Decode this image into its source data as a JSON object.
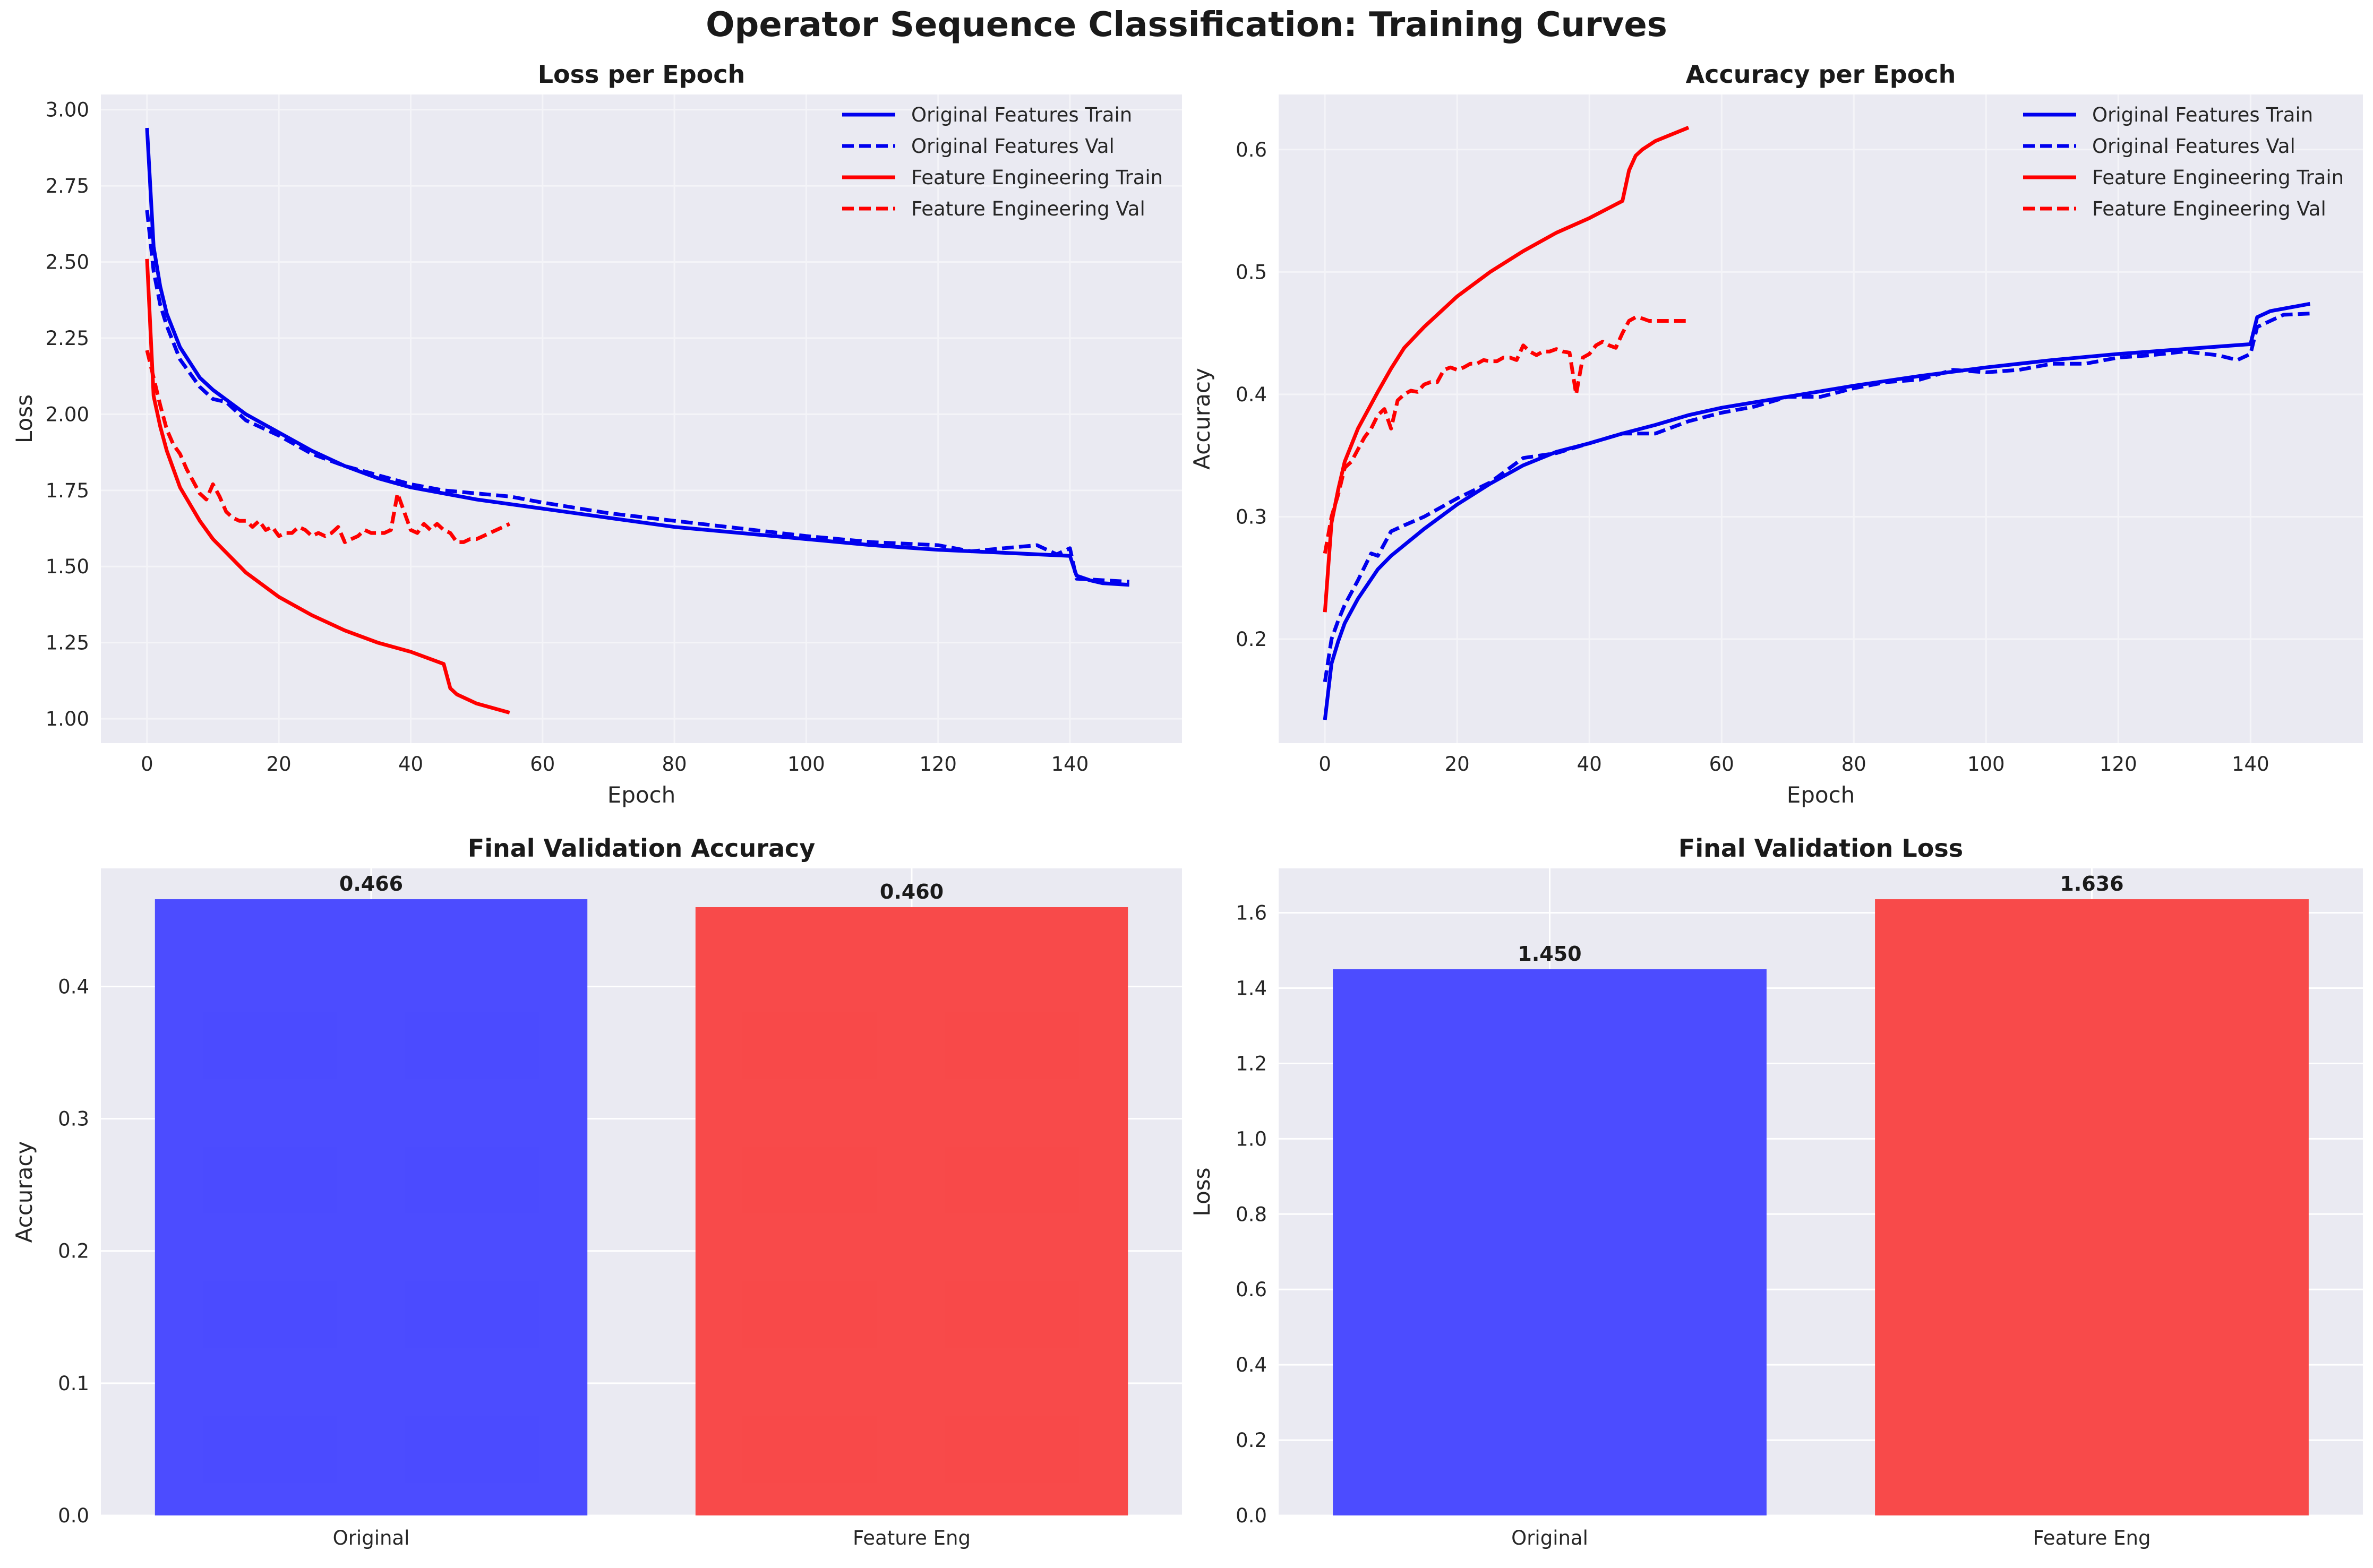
{
  "suptitle": "Operator Sequence Classification: Training Curves",
  "colors": {
    "blue": "#0000ee",
    "red": "#ff0000",
    "bar_blue": "#4646ff",
    "bar_red": "#f84444",
    "panel_bg": "#eaeaf2",
    "grid": "#ffffff"
  },
  "chart_data": [
    {
      "type": "line",
      "title": "Loss per Epoch",
      "xlabel": "Epoch",
      "ylabel": "Loss",
      "xlim": [
        -7,
        157
      ],
      "ylim": [
        0.92,
        3.05
      ],
      "xticks": [
        0,
        20,
        40,
        60,
        80,
        100,
        120,
        140
      ],
      "yticks": [
        1.0,
        1.25,
        1.5,
        1.75,
        2.0,
        2.25,
        2.5,
        2.75,
        3.0
      ],
      "ytick_labels": [
        "1.00",
        "1.25",
        "1.50",
        "1.75",
        "2.00",
        "2.25",
        "2.50",
        "2.75",
        "3.00"
      ],
      "grid": true,
      "legend_position": "upper right",
      "series": [
        {
          "name": "Original Features Train",
          "color": "#0000ee",
          "style": "solid",
          "x": [
            0,
            1,
            2,
            3,
            5,
            8,
            10,
            15,
            20,
            25,
            30,
            35,
            40,
            45,
            50,
            60,
            70,
            80,
            90,
            100,
            110,
            120,
            130,
            140,
            141,
            143,
            145,
            149
          ],
          "y": [
            2.94,
            2.55,
            2.42,
            2.33,
            2.22,
            2.12,
            2.08,
            2.0,
            1.94,
            1.88,
            1.83,
            1.79,
            1.76,
            1.74,
            1.72,
            1.69,
            1.66,
            1.63,
            1.61,
            1.59,
            1.57,
            1.555,
            1.545,
            1.535,
            1.47,
            1.455,
            1.445,
            1.44
          ]
        },
        {
          "name": "Original Features Val",
          "color": "#0000ee",
          "style": "dashed",
          "x": [
            0,
            1,
            2,
            3,
            5,
            8,
            10,
            12,
            15,
            20,
            25,
            30,
            35,
            40,
            45,
            50,
            55,
            60,
            70,
            80,
            90,
            100,
            105,
            110,
            115,
            120,
            125,
            130,
            135,
            138,
            140,
            141,
            145,
            149
          ],
          "y": [
            2.67,
            2.47,
            2.36,
            2.29,
            2.18,
            2.09,
            2.05,
            2.04,
            1.98,
            1.93,
            1.87,
            1.83,
            1.8,
            1.77,
            1.75,
            1.74,
            1.73,
            1.71,
            1.675,
            1.65,
            1.625,
            1.6,
            1.59,
            1.58,
            1.575,
            1.57,
            1.55,
            1.56,
            1.57,
            1.54,
            1.56,
            1.46,
            1.455,
            1.45
          ]
        },
        {
          "name": "Feature Engineering Train",
          "color": "#ff0000",
          "style": "solid",
          "x": [
            0,
            1,
            2,
            3,
            5,
            8,
            10,
            15,
            20,
            25,
            30,
            35,
            40,
            45,
            46,
            47,
            50,
            55
          ],
          "y": [
            2.51,
            2.06,
            1.96,
            1.88,
            1.76,
            1.65,
            1.59,
            1.48,
            1.4,
            1.34,
            1.29,
            1.25,
            1.22,
            1.18,
            1.1,
            1.08,
            1.05,
            1.02
          ]
        },
        {
          "name": "Feature Engineering Val",
          "color": "#ff0000",
          "style": "dashed",
          "x": [
            0,
            1,
            2,
            3,
            4,
            5,
            6,
            7,
            8,
            9,
            10,
            11,
            12,
            13,
            14,
            15,
            16,
            17,
            18,
            19,
            20,
            21,
            22,
            23,
            24,
            25,
            26,
            27,
            28,
            29,
            30,
            31,
            32,
            33,
            34,
            35,
            36,
            37,
            38,
            39,
            40,
            41,
            42,
            43,
            44,
            45,
            46,
            47,
            48,
            49,
            50,
            51,
            52,
            53,
            54,
            55
          ],
          "y": [
            2.21,
            2.12,
            2.03,
            1.95,
            1.9,
            1.87,
            1.82,
            1.78,
            1.74,
            1.72,
            1.77,
            1.73,
            1.68,
            1.66,
            1.65,
            1.65,
            1.63,
            1.65,
            1.62,
            1.63,
            1.6,
            1.61,
            1.61,
            1.63,
            1.62,
            1.6,
            1.61,
            1.6,
            1.61,
            1.63,
            1.58,
            1.59,
            1.6,
            1.62,
            1.61,
            1.61,
            1.61,
            1.62,
            1.74,
            1.68,
            1.62,
            1.61,
            1.64,
            1.62,
            1.64,
            1.62,
            1.61,
            1.58,
            1.58,
            1.59,
            1.59,
            1.6,
            1.61,
            1.62,
            1.63,
            1.64
          ]
        }
      ]
    },
    {
      "type": "line",
      "title": "Accuracy per Epoch",
      "xlabel": "Epoch",
      "ylabel": "Accuracy",
      "xlim": [
        -7,
        157
      ],
      "ylim": [
        0.115,
        0.645
      ],
      "xticks": [
        0,
        20,
        40,
        60,
        80,
        100,
        120,
        140
      ],
      "yticks": [
        0.2,
        0.3,
        0.4,
        0.5,
        0.6
      ],
      "ytick_labels": [
        "0.2",
        "0.3",
        "0.4",
        "0.5",
        "0.6"
      ],
      "grid": true,
      "legend_position": "upper right",
      "series": [
        {
          "name": "Original Features Train",
          "color": "#0000ee",
          "style": "solid",
          "x": [
            0,
            1,
            2,
            3,
            5,
            8,
            10,
            15,
            20,
            25,
            30,
            35,
            40,
            45,
            50,
            55,
            60,
            70,
            80,
            90,
            100,
            110,
            120,
            130,
            140,
            141,
            143,
            145,
            149
          ],
          "y": [
            0.134,
            0.18,
            0.198,
            0.213,
            0.233,
            0.257,
            0.268,
            0.29,
            0.31,
            0.327,
            0.342,
            0.353,
            0.36,
            0.368,
            0.375,
            0.383,
            0.389,
            0.398,
            0.407,
            0.415,
            0.422,
            0.428,
            0.433,
            0.437,
            0.441,
            0.463,
            0.468,
            0.47,
            0.474
          ]
        },
        {
          "name": "Original Features Val",
          "color": "#0000ee",
          "style": "dashed",
          "x": [
            0,
            1,
            2,
            3,
            5,
            7,
            8,
            10,
            12,
            15,
            20,
            25,
            30,
            35,
            40,
            45,
            50,
            55,
            60,
            65,
            70,
            75,
            80,
            85,
            90,
            95,
            100,
            105,
            110,
            115,
            120,
            125,
            130,
            135,
            138,
            140,
            141,
            143,
            145,
            149
          ],
          "y": [
            0.165,
            0.2,
            0.215,
            0.228,
            0.248,
            0.27,
            0.268,
            0.288,
            0.293,
            0.3,
            0.315,
            0.328,
            0.348,
            0.352,
            0.36,
            0.368,
            0.368,
            0.378,
            0.385,
            0.39,
            0.398,
            0.398,
            0.405,
            0.41,
            0.412,
            0.42,
            0.418,
            0.42,
            0.425,
            0.425,
            0.43,
            0.432,
            0.435,
            0.432,
            0.428,
            0.433,
            0.455,
            0.46,
            0.465,
            0.466
          ]
        },
        {
          "name": "Feature Engineering Train",
          "color": "#ff0000",
          "style": "solid",
          "x": [
            0,
            1,
            2,
            3,
            5,
            8,
            10,
            12,
            15,
            20,
            25,
            30,
            35,
            40,
            45,
            46,
            47,
            48,
            50,
            55
          ],
          "y": [
            0.222,
            0.295,
            0.322,
            0.345,
            0.372,
            0.402,
            0.421,
            0.438,
            0.455,
            0.48,
            0.5,
            0.517,
            0.532,
            0.544,
            0.558,
            0.583,
            0.595,
            0.6,
            0.607,
            0.618
          ]
        },
        {
          "name": "Feature Engineering Val",
          "color": "#ff0000",
          "style": "dashed",
          "x": [
            0,
            1,
            2,
            3,
            4,
            5,
            6,
            7,
            8,
            9,
            10,
            11,
            12,
            13,
            14,
            15,
            16,
            17,
            18,
            19,
            20,
            21,
            22,
            23,
            24,
            25,
            26,
            27,
            28,
            29,
            30,
            31,
            32,
            33,
            34,
            35,
            36,
            37,
            38,
            39,
            40,
            41,
            42,
            43,
            44,
            45,
            46,
            47,
            48,
            49,
            50,
            51,
            52,
            53,
            54,
            55
          ],
          "y": [
            0.27,
            0.3,
            0.318,
            0.34,
            0.345,
            0.355,
            0.365,
            0.372,
            0.383,
            0.388,
            0.372,
            0.395,
            0.4,
            0.403,
            0.402,
            0.408,
            0.41,
            0.41,
            0.42,
            0.422,
            0.42,
            0.422,
            0.425,
            0.425,
            0.428,
            0.427,
            0.427,
            0.43,
            0.43,
            0.428,
            0.44,
            0.435,
            0.432,
            0.435,
            0.435,
            0.437,
            0.435,
            0.434,
            0.4,
            0.43,
            0.433,
            0.44,
            0.443,
            0.44,
            0.438,
            0.45,
            0.46,
            0.463,
            0.462,
            0.46,
            0.46,
            0.46,
            0.46,
            0.46,
            0.46,
            0.46
          ]
        }
      ]
    },
    {
      "type": "bar",
      "title": "Final Validation Accuracy",
      "xlabel": "",
      "ylabel": "Accuracy",
      "categories": [
        "Original",
        "Feature Eng"
      ],
      "values": [
        0.466,
        0.46
      ],
      "value_labels": [
        "0.466",
        "0.460"
      ],
      "bar_colors": [
        "#4646ff",
        "#f84444"
      ],
      "ylim": [
        0,
        0.4893
      ],
      "yticks": [
        0,
        0.1,
        0.2,
        0.3,
        0.4
      ],
      "ytick_labels": [
        "0.0",
        "0.1",
        "0.2",
        "0.3",
        "0.4"
      ],
      "grid": true
    },
    {
      "type": "bar",
      "title": "Final Validation Loss",
      "xlabel": "",
      "ylabel": "Loss",
      "categories": [
        "Original",
        "Feature Eng"
      ],
      "values": [
        1.45,
        1.636
      ],
      "value_labels": [
        "1.450",
        "1.636"
      ],
      "bar_colors": [
        "#4646ff",
        "#f84444"
      ],
      "ylim": [
        0,
        1.7178
      ],
      "yticks": [
        0,
        0.2,
        0.4,
        0.6,
        0.8,
        1.0,
        1.2,
        1.4,
        1.6
      ],
      "ytick_labels": [
        "0.0",
        "0.2",
        "0.4",
        "0.6",
        "0.8",
        "1.0",
        "1.2",
        "1.4",
        "1.6"
      ],
      "grid": true
    }
  ]
}
